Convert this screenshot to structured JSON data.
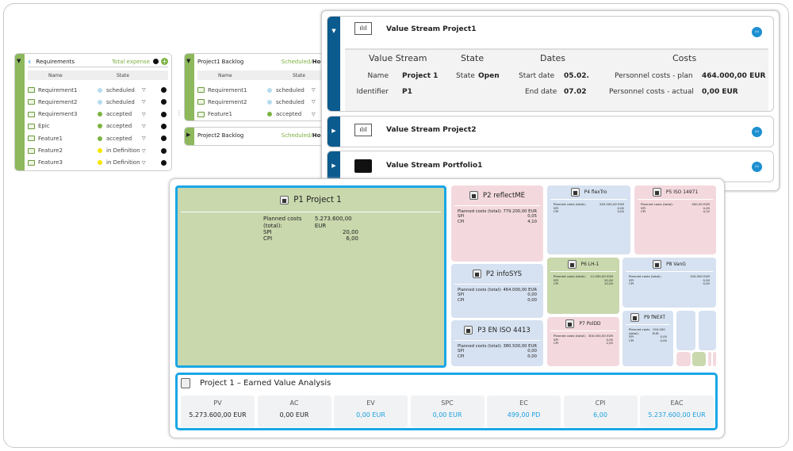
{
  "requirements": {
    "title": "Requirements",
    "total_label": "Total expense",
    "columns": [
      "Name",
      "State"
    ],
    "rows": [
      {
        "name": "Requirement1",
        "state": "scheduled",
        "color": "#b7dcef"
      },
      {
        "name": "Requirement2",
        "state": "scheduled",
        "color": "#b7dcef"
      },
      {
        "name": "Requirement3",
        "state": "accepted",
        "color": "#7cb342"
      },
      {
        "name": "Epic",
        "state": "accepted",
        "color": "#7cb342"
      },
      {
        "name": "Feature1",
        "state": "accepted",
        "color": "#7cb342"
      },
      {
        "name": "Feature2",
        "state": "in Definition",
        "color": "#f5e600"
      },
      {
        "name": "Feature3",
        "state": "in Definition",
        "color": "#f5e600"
      }
    ]
  },
  "backlogs": [
    {
      "title": "Project1 Backlog",
      "status": "Scheduled/",
      "status2": "Hours",
      "columns": [
        "Name",
        "State"
      ],
      "rows": [
        {
          "name": "Requirement1",
          "state": "scheduled",
          "color": "#b7dcef"
        },
        {
          "name": "Requirement2",
          "state": "scheduled",
          "color": "#b7dcef"
        },
        {
          "name": "Feature1",
          "state": "accepted",
          "color": "#7cb342"
        }
      ]
    },
    {
      "title": "Project2 Backlog",
      "status": "Scheduled/",
      "status2": "Hours"
    }
  ],
  "value_streams": [
    {
      "title": "Value Stream Project1",
      "detail": {
        "h_vs": "Value Stream",
        "h_state": "State",
        "h_dates": "Dates",
        "h_costs": "Costs",
        "name_label": "Name",
        "name": "Project 1",
        "id_label": "Identifier",
        "id": "P1",
        "state_label": "State",
        "state": "Open",
        "start_label": "Start date",
        "start": "05.02.",
        "end_label": "End date",
        "end": "07.02",
        "plan_label": "Personnel costs - plan",
        "plan": "464.000,00 EUR",
        "actual_label": "Personnel costs - actual",
        "actual": "0,00 EUR"
      }
    },
    {
      "title": "Value Stream Project2"
    },
    {
      "title": "Value Stream Portfolio1"
    }
  ],
  "treemap": {
    "labels": {
      "planned": "Planned costs (total):",
      "spi": "SPI",
      "cpi": "CPI"
    },
    "tiles": [
      {
        "title": "P1 Project 1",
        "planned": "5.273.600,00 EUR",
        "spi": "20,00",
        "cpi": "6,00"
      },
      {
        "title": "P2 reflectME",
        "planned": "779.200,00 EUR",
        "spi": "0,05",
        "cpi": "4,10"
      },
      {
        "title": "P4 flexTro",
        "planned": "249.200,00 EUR",
        "spi": "0,00",
        "cpi": "0,00"
      },
      {
        "title": "P5 ISO 14971",
        "planned": "400,00 EUR",
        "spi": "0,05",
        "cpi": "4,10"
      },
      {
        "title": "P2 infoSYS",
        "planned": "464.000,00 EUR",
        "spi": "0,00",
        "cpi": "0,00"
      },
      {
        "title": "P6 LH-1",
        "planned": "11.000,00 EUR",
        "spi": "20,00",
        "cpi": "10,00"
      },
      {
        "title": "P8 VanG",
        "planned": "150.000 EUR",
        "spi": "0,00",
        "cpi": "0,00"
      },
      {
        "title": "P3 EN ISO 4413",
        "planned": "380.500,00 EUR",
        "spi": "0,00",
        "cpi": "0,00"
      },
      {
        "title": "P7 PolDD",
        "planned": "300.000,00 EUR",
        "spi": "0,05",
        "cpi": "2,05"
      },
      {
        "title": "P9 fNEXT",
        "planned": "150.000 EUR",
        "spi": "0,00",
        "cpi": "0,00"
      }
    ]
  },
  "eva": {
    "title": "Project 1 – Earned Value Analysis",
    "metrics": [
      {
        "k": "PV",
        "v": "5.273.600,00 EUR"
      },
      {
        "k": "AC",
        "v": "0,00 EUR"
      },
      {
        "k": "EV",
        "v": "0,00 EUR"
      },
      {
        "k": "SPC",
        "v": "0,00 EUR"
      },
      {
        "k": "EC",
        "v": "499,00 PD"
      },
      {
        "k": "CPI",
        "v": "6,00"
      },
      {
        "k": "EAC",
        "v": "5.237.600,00 EUR"
      }
    ]
  }
}
